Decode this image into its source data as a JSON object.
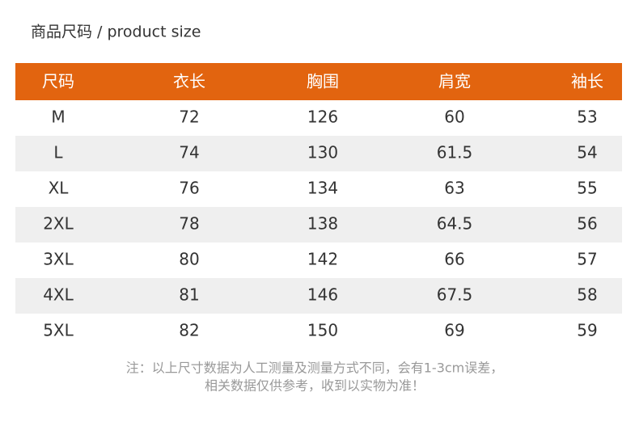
{
  "header": {
    "title": "商品尺码 / product size"
  },
  "table": {
    "columns": [
      "尺码",
      "衣长",
      "胸围",
      "肩宽",
      "袖长"
    ],
    "rows": [
      [
        "M",
        "72",
        "126",
        "60",
        "53"
      ],
      [
        "L",
        "74",
        "130",
        "61.5",
        "54"
      ],
      [
        "XL",
        "76",
        "134",
        "63",
        "55"
      ],
      [
        "2XL",
        "78",
        "138",
        "64.5",
        "56"
      ],
      [
        "3XL",
        "80",
        "142",
        "66",
        "57"
      ],
      [
        "4XL",
        "81",
        "146",
        "67.5",
        "58"
      ],
      [
        "5XL",
        "82",
        "150",
        "69",
        "59"
      ]
    ]
  },
  "note": [
    "注：以上尺寸数据为人工测量及测量方式不同，会有1-3cm误差，",
    "相关数据仅供参考，收到以实物为准！"
  ]
}
